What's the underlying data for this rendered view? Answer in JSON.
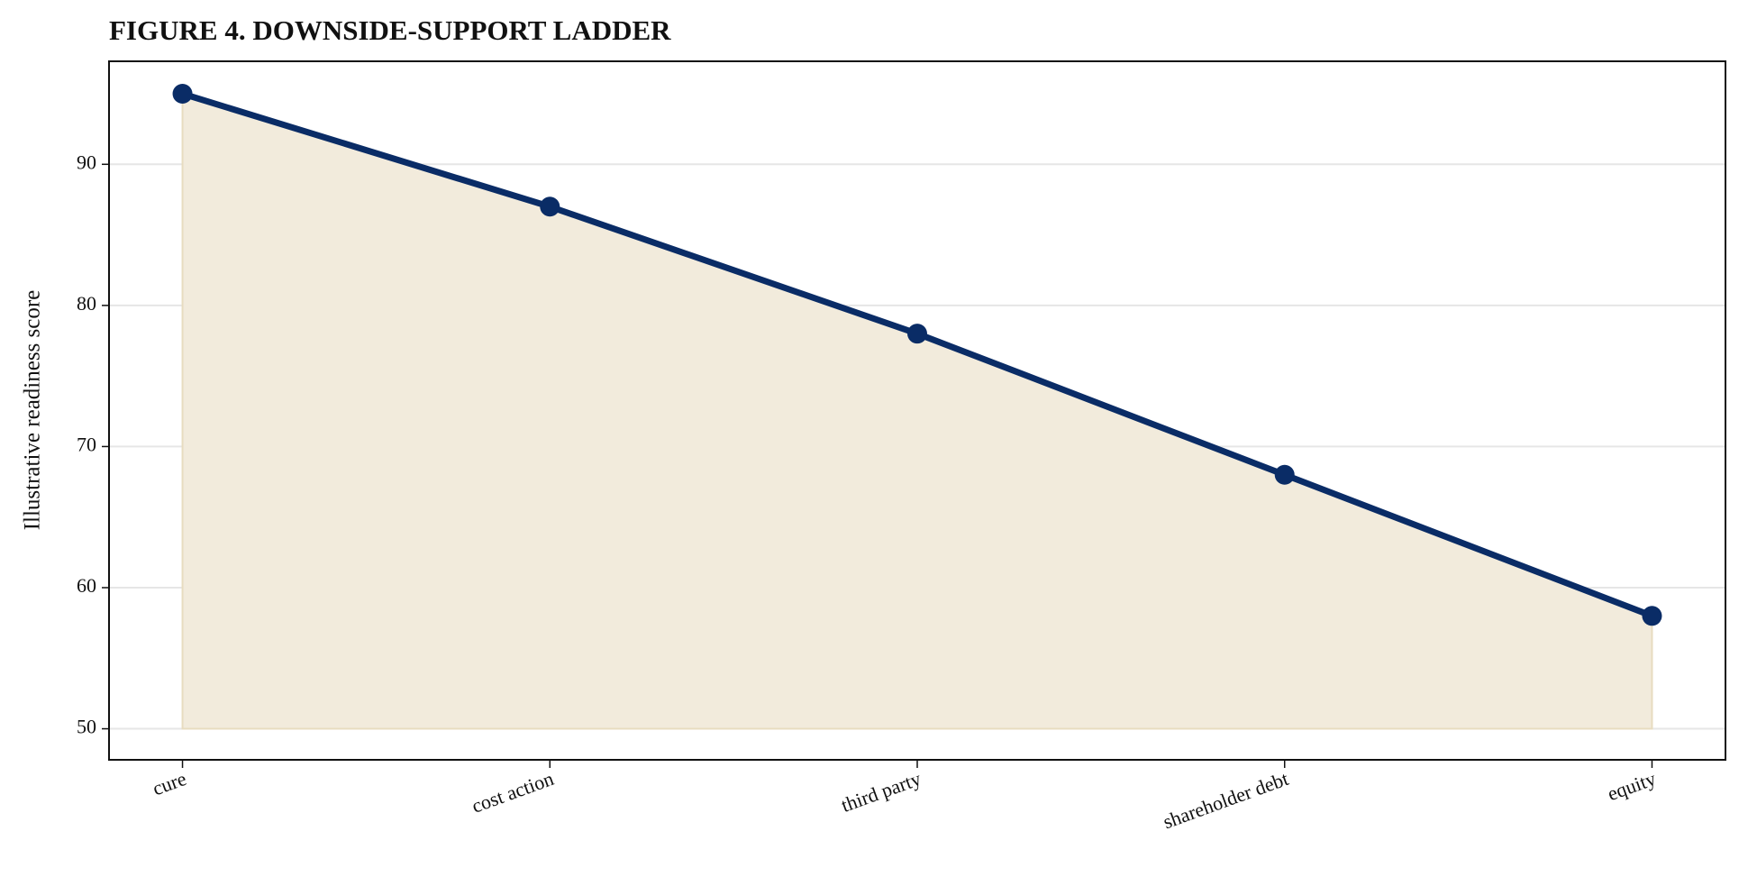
{
  "chart_data": {
    "type": "area-line",
    "title": "FIGURE 4. DOWNSIDE-SUPPORT LADDER",
    "y_label": "Illustrative readiness score",
    "categories": [
      "cure",
      "cost action",
      "third party",
      "shareholder debt",
      "equity"
    ],
    "values": [
      95,
      87,
      78,
      68,
      58
    ],
    "color": "#0a2c66",
    "fill_color": "#f2ebdc",
    "fill_to": 50,
    "ylim": [
      47.8,
      97.3
    ],
    "yticks": [
      50,
      60,
      70,
      80,
      90
    ],
    "grid": true
  }
}
